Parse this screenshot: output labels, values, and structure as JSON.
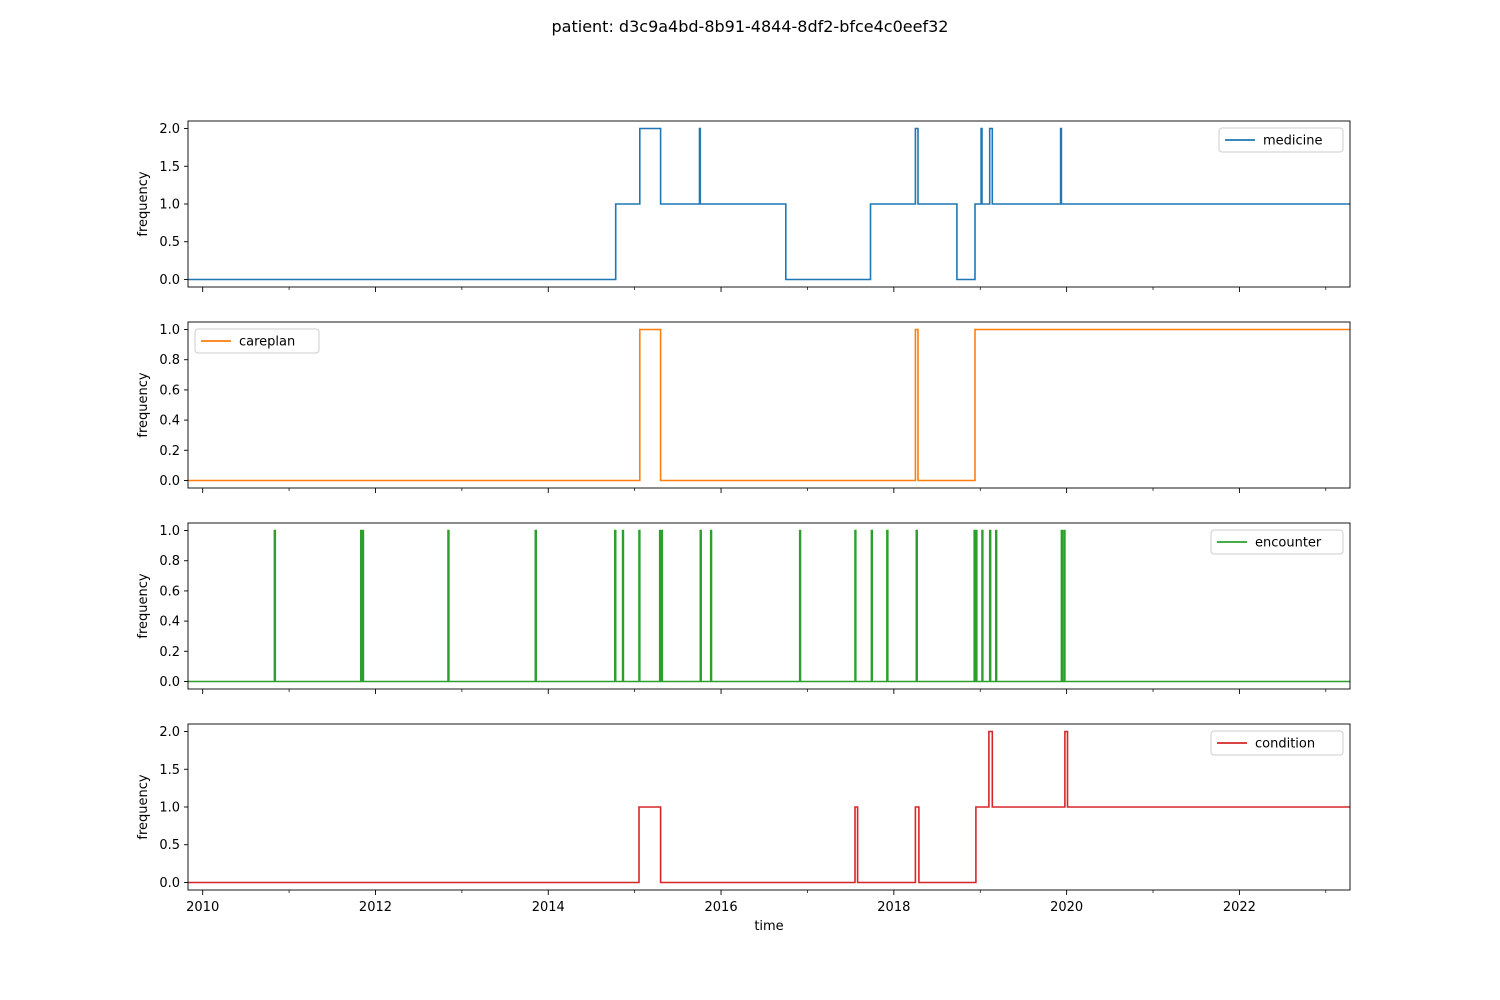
{
  "figure": {
    "title": "patient: d3c9a4bd-8b91-4844-8df2-bfce4c0eef32",
    "xlabel": "time"
  },
  "chart_data": [
    {
      "type": "line",
      "name": "medicine",
      "color": "#1f77b4",
      "ylabel": "frequency",
      "xlim": [
        2009.83,
        2023.28
      ],
      "ylim": [
        -0.1,
        2.1
      ],
      "yticks": [
        0.0,
        0.5,
        1.0,
        1.5,
        2.0
      ],
      "ytick_labels": [
        "0.0",
        "0.5",
        "1.0",
        "1.5",
        "2.0"
      ],
      "legend": "upper right",
      "x": [
        2009.83,
        2014.78,
        2014.78,
        2015.06,
        2015.06,
        2015.3,
        2015.3,
        2015.75,
        2015.75,
        2015.76,
        2015.76,
        2016.75,
        2016.75,
        2017.73,
        2017.73,
        2018.25,
        2018.25,
        2018.28,
        2018.28,
        2018.73,
        2018.73,
        2018.94,
        2018.94,
        2019.01,
        2019.01,
        2019.02,
        2019.02,
        2019.11,
        2019.11,
        2019.14,
        2019.14,
        2019.93,
        2019.93,
        2019.94,
        2019.94,
        2023.28
      ],
      "y": [
        0,
        0,
        1,
        1,
        2,
        2,
        1,
        1,
        2,
        2,
        1,
        1,
        0,
        0,
        1,
        1,
        2,
        2,
        1,
        1,
        0,
        0,
        1,
        1,
        2,
        2,
        1,
        1,
        2,
        2,
        1,
        1,
        2,
        2,
        1,
        1
      ]
    },
    {
      "type": "line",
      "name": "careplan",
      "color": "#ff7f0e",
      "ylabel": "frequency",
      "xlim": [
        2009.83,
        2023.28
      ],
      "ylim": [
        -0.05,
        1.05
      ],
      "yticks": [
        0.0,
        0.2,
        0.4,
        0.6,
        0.8,
        1.0
      ],
      "ytick_labels": [
        "0.0",
        "0.2",
        "0.4",
        "0.6",
        "0.8",
        "1.0"
      ],
      "legend": "upper left",
      "x": [
        2009.83,
        2015.06,
        2015.06,
        2015.3,
        2015.3,
        2018.25,
        2018.25,
        2018.28,
        2018.28,
        2018.94,
        2018.94,
        2023.28
      ],
      "y": [
        0,
        0,
        1,
        1,
        0,
        0,
        1,
        1,
        0,
        0,
        1,
        1
      ]
    },
    {
      "type": "line",
      "name": "encounter",
      "color": "#2ca02c",
      "ylabel": "frequency",
      "xlim": [
        2009.83,
        2023.28
      ],
      "ylim": [
        -0.05,
        1.05
      ],
      "yticks": [
        0.0,
        0.2,
        0.4,
        0.6,
        0.8,
        1.0
      ],
      "ytick_labels": [
        "0.0",
        "0.2",
        "0.4",
        "0.6",
        "0.8",
        "1.0"
      ],
      "legend": "upper right",
      "spikes_at": [
        2010.83,
        2011.83,
        2011.85,
        2012.84,
        2013.85,
        2014.77,
        2014.86,
        2015.05,
        2015.29,
        2015.31,
        2015.76,
        2015.88,
        2016.91,
        2017.55,
        2017.74,
        2017.92,
        2018.26,
        2018.93,
        2018.95,
        2019.02,
        2019.11,
        2019.18,
        2019.94,
        2019.97
      ],
      "spike_value": 1,
      "base_value": 0
    },
    {
      "type": "line",
      "name": "condition",
      "color": "#d62728",
      "ylabel": "frequency",
      "xlim": [
        2009.83,
        2023.28
      ],
      "ylim": [
        -0.1,
        2.1
      ],
      "yticks": [
        0.0,
        0.5,
        1.0,
        1.5,
        2.0
      ],
      "ytick_labels": [
        "0.0",
        "0.5",
        "1.0",
        "1.5",
        "2.0"
      ],
      "legend": "upper right",
      "x": [
        2009.83,
        2015.05,
        2015.05,
        2015.3,
        2015.3,
        2017.55,
        2017.55,
        2017.58,
        2017.58,
        2018.25,
        2018.25,
        2018.29,
        2018.29,
        2018.95,
        2018.95,
        2019.1,
        2019.1,
        2019.14,
        2019.14,
        2019.98,
        2019.98,
        2020.01,
        2020.01,
        2023.28
      ],
      "y": [
        0,
        0,
        1,
        1,
        0,
        0,
        1,
        1,
        0,
        0,
        1,
        1,
        0,
        0,
        1,
        1,
        2,
        2,
        1,
        1,
        2,
        2,
        1,
        1
      ]
    }
  ],
  "x_axis": {
    "major_ticks": [
      2010,
      2012,
      2014,
      2016,
      2018,
      2020,
      2022
    ],
    "major_labels": [
      "2010",
      "2012",
      "2014",
      "2016",
      "2018",
      "2020",
      "2022"
    ],
    "minor_ticks": [
      2011,
      2013,
      2015,
      2017,
      2019,
      2021,
      2023
    ]
  }
}
